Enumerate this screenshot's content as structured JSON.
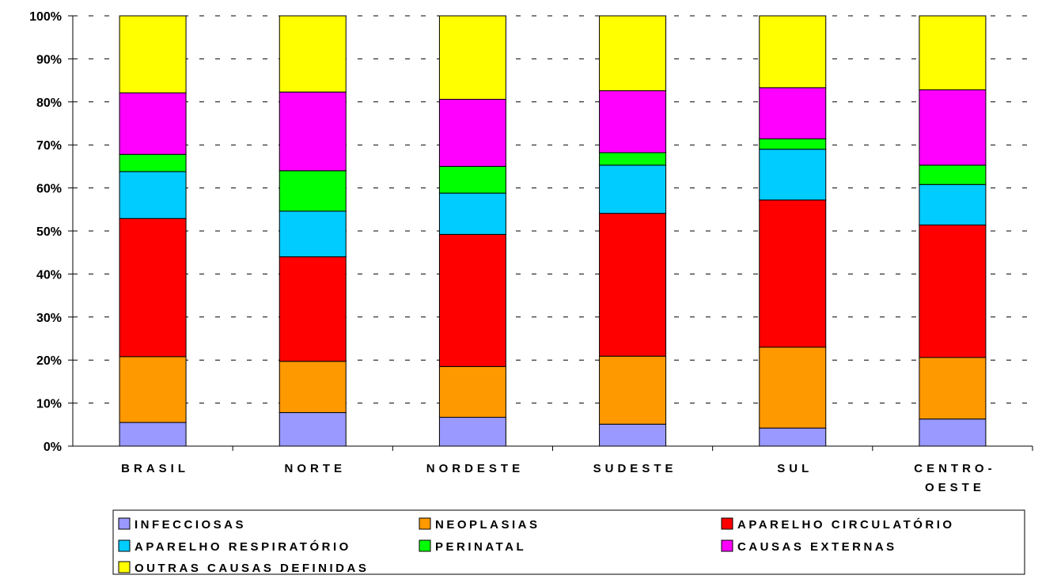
{
  "chart_data": {
    "type": "bar",
    "stacked": true,
    "normalized": true,
    "title": "",
    "xlabel": "",
    "ylabel": "",
    "ylim": [
      0,
      100
    ],
    "yticks": [
      "0%",
      "10%",
      "20%",
      "30%",
      "40%",
      "50%",
      "60%",
      "70%",
      "80%",
      "90%",
      "100%"
    ],
    "grid": "horizontal dashed",
    "legend_position": "bottom",
    "categories": [
      [
        "BRASIL"
      ],
      [
        "NORTE"
      ],
      [
        "NORDESTE"
      ],
      [
        "SUDESTE"
      ],
      [
        "SUL"
      ],
      [
        "CENTRO-",
        "OESTE"
      ]
    ],
    "series": [
      {
        "name": "INFECCIOSAS",
        "color": "#9999ff",
        "values": [
          5.5,
          7.8,
          6.7,
          5.1,
          4.2,
          6.3
        ]
      },
      {
        "name": "NEOPLASIAS",
        "color": "#ff9900",
        "values": [
          15.3,
          11.9,
          11.8,
          15.8,
          18.8,
          14.3
        ]
      },
      {
        "name": "APARELHO CIRCULATÓRIO",
        "color": "#ff0000",
        "values": [
          32.1,
          24.3,
          30.7,
          33.2,
          34.2,
          30.8
        ]
      },
      {
        "name": "APARELHO RESPIRATÓRIO",
        "color": "#00ccff",
        "values": [
          10.9,
          10.6,
          9.6,
          11.2,
          11.8,
          9.4
        ]
      },
      {
        "name": "PERINATAL",
        "color": "#00ff00",
        "values": [
          4.0,
          9.4,
          6.2,
          2.9,
          2.4,
          4.5
        ]
      },
      {
        "name": "CAUSAS EXTERNAS",
        "color": "#ff00ff",
        "values": [
          14.3,
          18.3,
          15.6,
          14.4,
          11.9,
          17.5
        ]
      },
      {
        "name": "OUTRAS CAUSAS DEFINIDAS",
        "color": "#ffff00",
        "values": [
          17.9,
          17.7,
          19.4,
          17.4,
          16.7,
          17.2
        ]
      }
    ]
  }
}
